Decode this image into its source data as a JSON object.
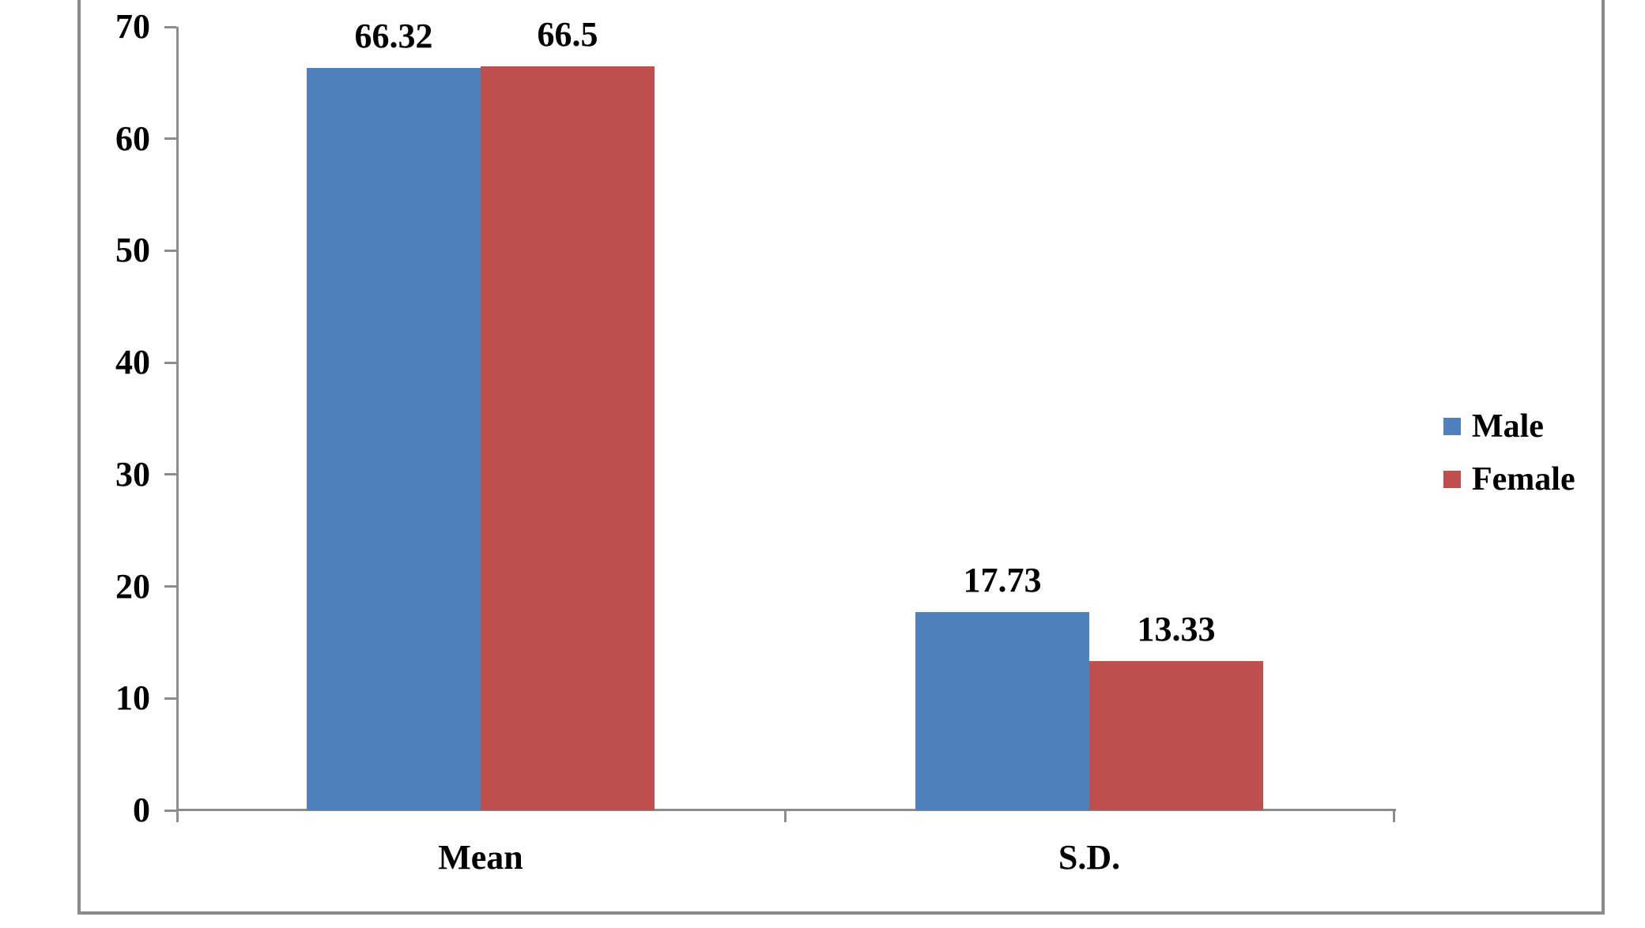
{
  "chart_data": {
    "type": "bar",
    "categories": [
      "Mean",
      "S.D."
    ],
    "series": [
      {
        "name": "Male",
        "color": "#4F81BD",
        "values": [
          66.32,
          17.73
        ],
        "labels": [
          "66.32",
          "17.73"
        ]
      },
      {
        "name": "Female",
        "color": "#C0504D",
        "values": [
          66.5,
          13.33
        ],
        "labels": [
          "66.5",
          "13.33"
        ]
      }
    ],
    "y_ticks": [
      0,
      10,
      20,
      30,
      40,
      50,
      60,
      70
    ],
    "ylim": [
      0,
      70
    ],
    "grid": false,
    "legend_position": "right"
  },
  "colors": {
    "axis": "#8C8C8C",
    "frame_border": "#898989",
    "text": "#000000",
    "background": "#FFFFFF"
  }
}
